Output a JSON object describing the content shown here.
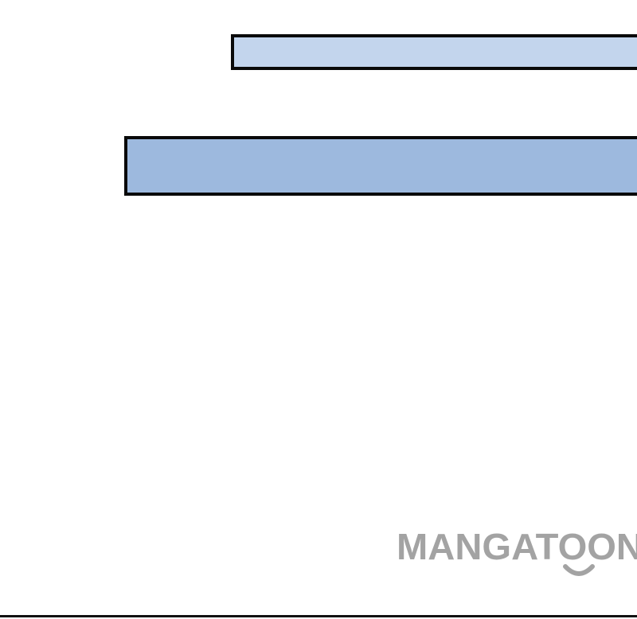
{
  "colors": {
    "background": "#ffffff",
    "bar_top_fill": "#c3d5ed",
    "bar_bottom_fill": "#9db9de",
    "outline": "#0a0a0a",
    "watermark": "#a3a3a3"
  },
  "watermark": {
    "text": "MANGATOON"
  }
}
